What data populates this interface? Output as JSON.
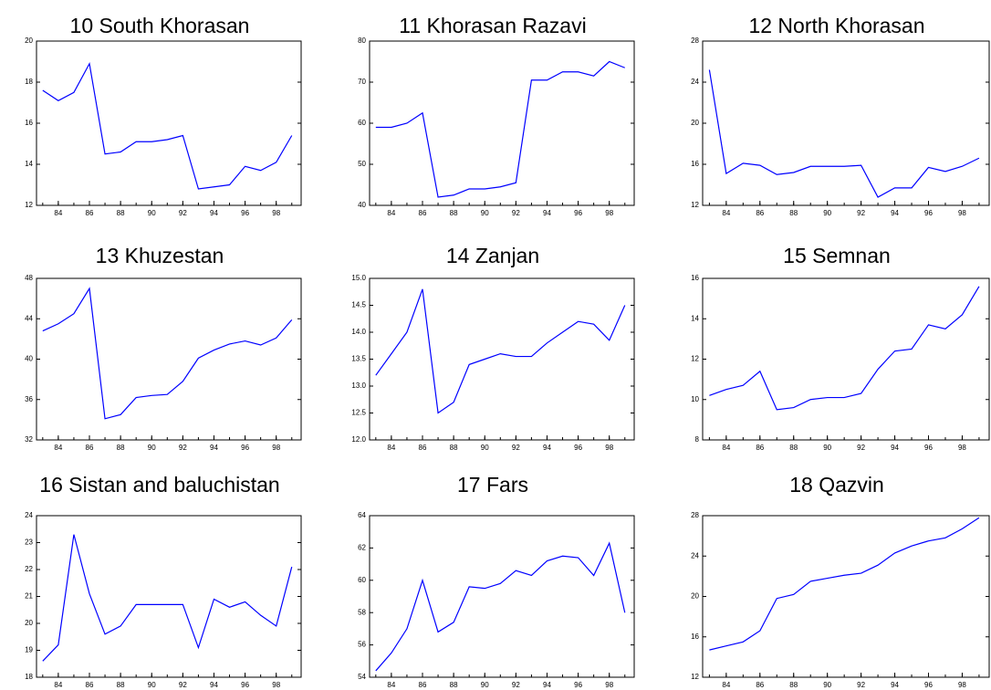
{
  "chart_data": [
    {
      "type": "line",
      "title": "10 South Khorasan",
      "color": "#0000ff",
      "x": [
        83,
        84,
        85,
        86,
        87,
        88,
        89,
        90,
        91,
        92,
        93,
        94,
        95,
        96,
        97,
        98,
        99
      ],
      "values": [
        17.6,
        17.1,
        17.5,
        18.9,
        14.5,
        14.6,
        15.1,
        15.1,
        15.2,
        15.4,
        12.8,
        12.9,
        13.0,
        13.9,
        13.7,
        14.1,
        15.4
      ],
      "xlim": [
        82.6,
        99.6
      ],
      "xticks": [
        84,
        86,
        88,
        90,
        92,
        94,
        96,
        98
      ],
      "ylim": [
        12,
        20
      ],
      "yticks": [
        12,
        14,
        16,
        18,
        20
      ]
    },
    {
      "type": "line",
      "title": "11 Khorasan Razavi",
      "color": "#0000ff",
      "x": [
        83,
        84,
        85,
        86,
        87,
        88,
        89,
        90,
        91,
        92,
        93,
        94,
        95,
        96,
        97,
        98,
        99
      ],
      "values": [
        59,
        59,
        60,
        62.5,
        42,
        42.5,
        44,
        44,
        44.5,
        45.5,
        70.5,
        70.5,
        72.5,
        72.5,
        71.5,
        75,
        73.5
      ],
      "xlim": [
        82.6,
        99.6
      ],
      "xticks": [
        84,
        86,
        88,
        90,
        92,
        94,
        96,
        98
      ],
      "ylim": [
        40,
        80
      ],
      "yticks": [
        40,
        50,
        60,
        70,
        80
      ]
    },
    {
      "type": "line",
      "title": "12 North Khorasan",
      "color": "#0000ff",
      "x": [
        83,
        84,
        85,
        86,
        87,
        88,
        89,
        90,
        91,
        92,
        93,
        94,
        95,
        96,
        97,
        98,
        99
      ],
      "values": [
        25.2,
        15.1,
        16.1,
        15.9,
        15.0,
        15.2,
        15.8,
        15.8,
        15.8,
        15.9,
        12.8,
        13.7,
        13.7,
        15.7,
        15.3,
        15.8,
        16.6
      ],
      "xlim": [
        82.6,
        99.6
      ],
      "xticks": [
        84,
        86,
        88,
        90,
        92,
        94,
        96,
        98
      ],
      "ylim": [
        12,
        28
      ],
      "yticks": [
        12,
        16,
        20,
        24,
        28
      ]
    },
    {
      "type": "line",
      "title": "13 Khuzestan",
      "color": "#0000ff",
      "x": [
        83,
        84,
        85,
        86,
        87,
        88,
        89,
        90,
        91,
        92,
        93,
        94,
        95,
        96,
        97,
        98,
        99
      ],
      "values": [
        42.8,
        43.5,
        44.5,
        47,
        34.1,
        34.5,
        36.2,
        36.4,
        36.5,
        37.8,
        40.1,
        40.9,
        41.5,
        41.8,
        41.4,
        42.1,
        43.9
      ],
      "xlim": [
        82.6,
        99.6
      ],
      "xticks": [
        84,
        86,
        88,
        90,
        92,
        94,
        96,
        98
      ],
      "ylim": [
        32,
        48
      ],
      "yticks": [
        32,
        36,
        40,
        44,
        48
      ]
    },
    {
      "type": "line",
      "title": "14 Zanjan",
      "color": "#0000ff",
      "x": [
        83,
        84,
        85,
        86,
        87,
        88,
        89,
        90,
        91,
        92,
        93,
        94,
        95,
        96,
        97,
        98,
        99
      ],
      "values": [
        13.2,
        13.6,
        14.0,
        14.8,
        12.5,
        12.7,
        13.4,
        13.5,
        13.6,
        13.55,
        13.55,
        13.8,
        14.0,
        14.2,
        14.15,
        13.85,
        14.5
      ],
      "xlim": [
        82.6,
        99.6
      ],
      "xticks": [
        84,
        86,
        88,
        90,
        92,
        94,
        96,
        98
      ],
      "ylim": [
        12,
        15
      ],
      "yticks": [
        {
          "value": 12,
          "label": "12.0"
        },
        12.5,
        {
          "value": 13,
          "label": "13.0"
        },
        13.5,
        {
          "value": 14,
          "label": "14.0"
        },
        14.5,
        {
          "value": 15,
          "label": "15.0"
        }
      ]
    },
    {
      "type": "line",
      "title": "15 Semnan",
      "color": "#0000ff",
      "x": [
        83,
        84,
        85,
        86,
        87,
        88,
        89,
        90,
        91,
        92,
        93,
        94,
        95,
        96,
        97,
        98,
        99
      ],
      "values": [
        10.2,
        10.5,
        10.7,
        11.4,
        9.5,
        9.6,
        10.0,
        10.1,
        10.1,
        10.3,
        11.5,
        12.4,
        12.5,
        13.7,
        13.5,
        14.2,
        15.6
      ],
      "xlim": [
        82.6,
        99.6
      ],
      "xticks": [
        84,
        86,
        88,
        90,
        92,
        94,
        96,
        98
      ],
      "ylim": [
        8,
        16
      ],
      "yticks": [
        8,
        10,
        12,
        14,
        16
      ]
    },
    {
      "type": "line",
      "title": "16 Sistan and baluchistan",
      "color": "#0000ff",
      "x": [
        83,
        84,
        85,
        86,
        87,
        88,
        89,
        90,
        91,
        92,
        93,
        94,
        95,
        96,
        97,
        98,
        99
      ],
      "values": [
        18.6,
        19.2,
        23.3,
        21.1,
        19.6,
        19.9,
        20.7,
        20.7,
        20.7,
        20.7,
        19.1,
        20.9,
        20.6,
        20.8,
        20.3,
        19.9,
        22.1
      ],
      "xlim": [
        82.6,
        99.6
      ],
      "xticks": [
        84,
        86,
        88,
        90,
        92,
        94,
        96,
        98
      ],
      "ylim": [
        18,
        24
      ],
      "yticks": [
        18,
        19,
        20,
        21,
        22,
        23,
        24
      ]
    },
    {
      "type": "line",
      "title": "17 Fars",
      "color": "#0000ff",
      "x": [
        83,
        84,
        85,
        86,
        87,
        88,
        89,
        90,
        91,
        92,
        93,
        94,
        95,
        96,
        97,
        98,
        99
      ],
      "values": [
        54.4,
        55.5,
        57,
        60,
        56.8,
        57.4,
        59.6,
        59.5,
        59.8,
        60.6,
        60.3,
        61.2,
        61.5,
        61.4,
        60.3,
        62.3,
        58
      ],
      "xlim": [
        82.6,
        99.6
      ],
      "xticks": [
        84,
        86,
        88,
        90,
        92,
        94,
        96,
        98
      ],
      "ylim": [
        54,
        64
      ],
      "yticks": [
        54,
        56,
        58,
        60,
        62,
        64
      ]
    },
    {
      "type": "line",
      "title": "18 Qazvin",
      "color": "#0000ff",
      "x": [
        83,
        84,
        85,
        86,
        87,
        88,
        89,
        90,
        91,
        92,
        93,
        94,
        95,
        96,
        97,
        98,
        99
      ],
      "values": [
        14.7,
        15.1,
        15.5,
        16.6,
        19.8,
        20.2,
        21.5,
        21.8,
        22.1,
        22.3,
        23.1,
        24.3,
        25.0,
        25.5,
        25.8,
        26.7,
        27.8
      ],
      "xlim": [
        82.6,
        99.6
      ],
      "xticks": [
        84,
        86,
        88,
        90,
        92,
        94,
        96,
        98
      ],
      "ylim": [
        12,
        28
      ],
      "yticks": [
        12,
        16,
        20,
        24,
        28
      ]
    }
  ]
}
